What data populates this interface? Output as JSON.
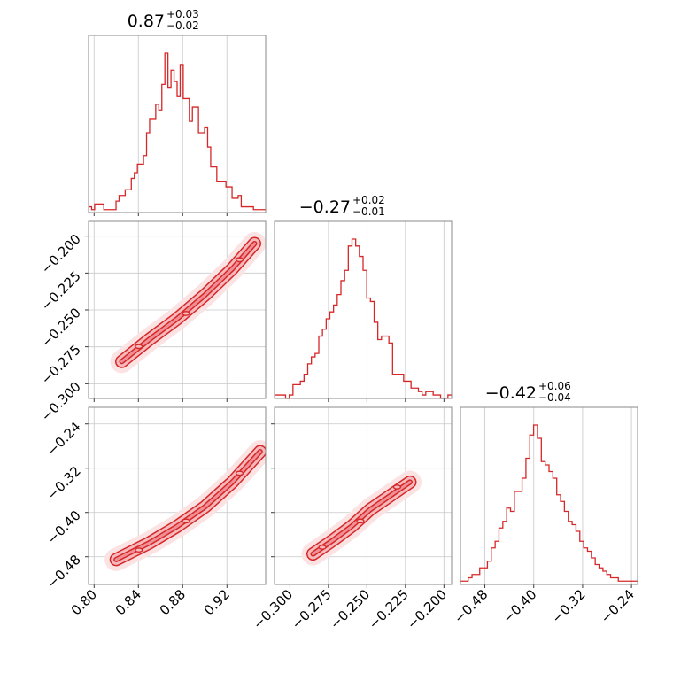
{
  "chart_data": [
    {
      "type": "histogram",
      "panel": "0-0",
      "title": {
        "value": "0.87",
        "plus": "+0.03",
        "minus": "−0.02"
      },
      "xlim": [
        0.795,
        0.955
      ],
      "x_ticks": [
        "0.80",
        "0.84",
        "0.88",
        "0.92"
      ],
      "bins": [
        0.795,
        0.955
      ],
      "counts": [
        2,
        1,
        3,
        3,
        3,
        1,
        1,
        1,
        1,
        4,
        6,
        6,
        8,
        8,
        12,
        14,
        17,
        17,
        20,
        28,
        33,
        33,
        38,
        36,
        45,
        56,
        44,
        50,
        46,
        41,
        52,
        40,
        40,
        32,
        37,
        37,
        28,
        28,
        30,
        23,
        16,
        16,
        11,
        11,
        11,
        9,
        9,
        5,
        5,
        6,
        2,
        2,
        2,
        2,
        1,
        1,
        1,
        1
      ]
    },
    {
      "type": "histogram",
      "panel": "1-1",
      "title": {
        "value": "−0.27",
        "plus": "+0.02",
        "minus": "−0.01"
      },
      "xlim": [
        -0.31,
        -0.195
      ],
      "x_ticks": [
        "−0.300",
        "−0.275",
        "−0.250",
        "−0.225",
        "−0.200"
      ],
      "bins": [
        -0.31,
        -0.195
      ],
      "counts": [
        1,
        1,
        1,
        0,
        1,
        4,
        4,
        5,
        7,
        10,
        12,
        13,
        18,
        20,
        23,
        25,
        27,
        30,
        34,
        37,
        44,
        46,
        44,
        41,
        37,
        29,
        28,
        22,
        17,
        18,
        18,
        16,
        7,
        7,
        7,
        5,
        5,
        3,
        3,
        2,
        1,
        2,
        2,
        1,
        1,
        0,
        0,
        1
      ]
    },
    {
      "type": "histogram",
      "panel": "2-2",
      "title": {
        "value": "−0.42",
        "plus": "+0.06",
        "minus": "−0.04"
      },
      "xlim": [
        -0.52,
        -0.23
      ],
      "x_ticks": [
        "−0.48",
        "−0.40",
        "−0.32",
        "−0.24"
      ],
      "bins": [
        -0.52,
        -0.23
      ],
      "counts": [
        1,
        1,
        2,
        3,
        3,
        5,
        5,
        7,
        11,
        13,
        17,
        19,
        23,
        22,
        28,
        28,
        32,
        38,
        45,
        48,
        44,
        37,
        36,
        34,
        32,
        27,
        25,
        22,
        19,
        18,
        16,
        13,
        11,
        10,
        8,
        6,
        5,
        4,
        3,
        2,
        2,
        1,
        1,
        1,
        1,
        1
      ]
    },
    {
      "type": "heatmap",
      "panel": "1-0",
      "x_param": 0,
      "y_param": 1,
      "xlim": [
        0.795,
        0.955
      ],
      "ylim": [
        -0.31,
        -0.19
      ],
      "x_ticks": [
        "0.80",
        "0.84",
        "0.88",
        "0.92"
      ],
      "y_ticks": [
        "−0.200",
        "−0.225",
        "−0.250",
        "−0.275",
        "−0.300"
      ],
      "ridge": [
        [
          0.825,
          -0.285
        ],
        [
          0.85,
          -0.27
        ],
        [
          0.875,
          -0.256
        ],
        [
          0.9,
          -0.24
        ],
        [
          0.925,
          -0.222
        ],
        [
          0.945,
          -0.205
        ]
      ],
      "width": 0.007
    },
    {
      "type": "heatmap",
      "panel": "2-0",
      "x_param": 0,
      "y_param": 2,
      "xlim": [
        0.795,
        0.955
      ],
      "ylim": [
        -0.53,
        -0.21
      ],
      "x_ticks": [
        "0.80",
        "0.84",
        "0.88",
        "0.92"
      ],
      "y_ticks": [
        "−0.24",
        "−0.32",
        "−0.40",
        "−0.48"
      ],
      "ridge": [
        [
          0.82,
          -0.485
        ],
        [
          0.85,
          -0.455
        ],
        [
          0.875,
          -0.425
        ],
        [
          0.9,
          -0.39
        ],
        [
          0.925,
          -0.345
        ],
        [
          0.95,
          -0.29
        ]
      ],
      "width": 0.01
    },
    {
      "type": "heatmap",
      "panel": "2-1",
      "x_param": 1,
      "y_param": 2,
      "xlim": [
        -0.31,
        -0.195
      ],
      "ylim": [
        -0.53,
        -0.21
      ],
      "x_ticks": [
        "−0.300",
        "−0.275",
        "−0.250",
        "−0.225",
        "−0.200"
      ],
      "y_ticks": [
        "−0.24",
        "−0.32",
        "−0.40",
        "−0.48"
      ],
      "ridge": [
        [
          -0.285,
          -0.475
        ],
        [
          -0.272,
          -0.45
        ],
        [
          -0.26,
          -0.425
        ],
        [
          -0.248,
          -0.395
        ],
        [
          -0.235,
          -0.37
        ],
        [
          -0.222,
          -0.345
        ]
      ],
      "width": 0.022
    }
  ],
  "style": {
    "line_color": "#d62728",
    "fill_color": "#f5b8bb",
    "grid_color": "#c8c8c8"
  }
}
